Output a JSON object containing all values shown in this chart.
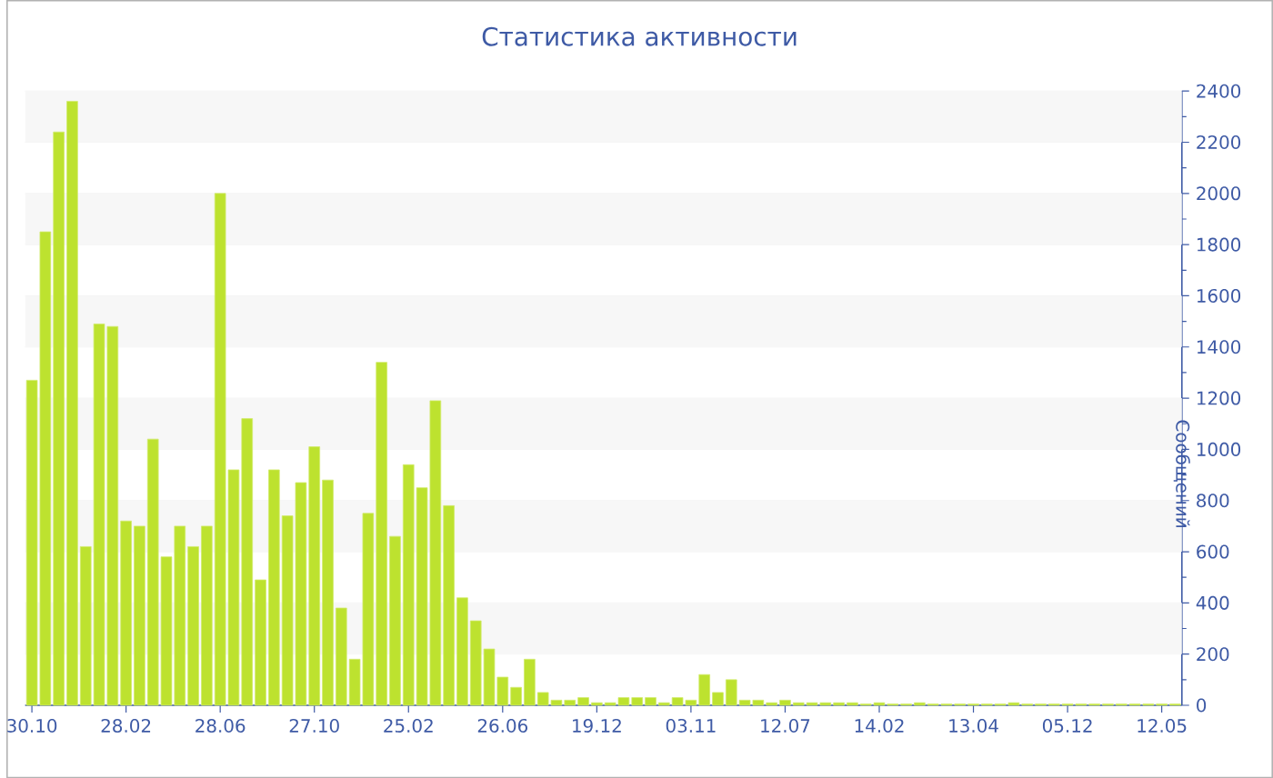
{
  "chart_data": {
    "type": "bar",
    "title": "Статистика активности",
    "ylabel": "Сообщений",
    "categories": [
      "30.10",
      null,
      null,
      null,
      null,
      null,
      null,
      "28.02",
      null,
      null,
      null,
      null,
      null,
      null,
      "28.06",
      null,
      null,
      null,
      null,
      null,
      null,
      "27.10",
      null,
      null,
      null,
      null,
      null,
      null,
      "25.02",
      null,
      null,
      null,
      null,
      null,
      null,
      "26.06",
      null,
      null,
      null,
      null,
      null,
      null,
      "19.12",
      null,
      null,
      null,
      null,
      null,
      null,
      "03.11",
      null,
      null,
      null,
      null,
      null,
      null,
      "12.07",
      null,
      null,
      null,
      null,
      null,
      null,
      "14.02",
      null,
      null,
      null,
      null,
      null,
      null,
      "13.04",
      null,
      null,
      null,
      null,
      null,
      null,
      "05.12",
      null,
      null,
      null,
      null,
      null,
      null,
      "12.05",
      null
    ],
    "values": [
      1270,
      1850,
      2240,
      2360,
      620,
      1490,
      1480,
      720,
      700,
      1040,
      580,
      700,
      620,
      700,
      2000,
      920,
      1120,
      490,
      920,
      740,
      870,
      1010,
      880,
      380,
      180,
      750,
      1340,
      660,
      940,
      850,
      1190,
      780,
      420,
      330,
      220,
      110,
      70,
      180,
      50,
      20,
      20,
      30,
      10,
      10,
      30,
      30,
      30,
      10,
      30,
      20,
      120,
      50,
      100,
      20,
      20,
      10,
      20,
      10,
      10,
      10,
      10,
      10,
      5,
      10,
      5,
      5,
      10,
      5,
      5,
      5,
      5,
      5,
      5,
      10,
      5,
      5,
      5,
      5,
      5,
      5,
      5,
      5,
      5,
      5,
      5,
      5
    ],
    "color": "#bde22f",
    "ylim": [
      0,
      2400
    ],
    "yticks": [
      0,
      200,
      400,
      600,
      800,
      1000,
      1200,
      1400,
      1600,
      1800,
      2000,
      2200,
      2400
    ],
    "grid": "y"
  }
}
